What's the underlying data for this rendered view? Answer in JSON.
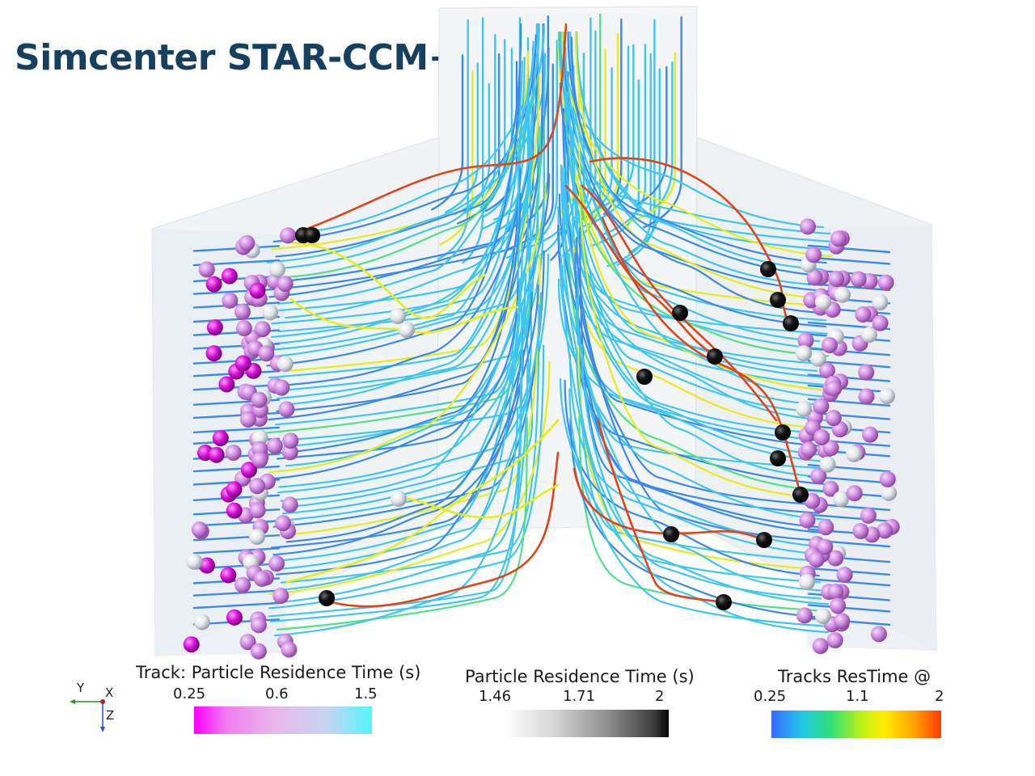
{
  "app_title": "Simcenter STAR-CCM+",
  "legends": {
    "track": {
      "title": "Track: Particle Residence Time (s)",
      "ticks": [
        "0.25",
        "0.6",
        "1.5"
      ],
      "gradient": [
        "#ff00ff",
        "#e9b7ea",
        "#52f5ff"
      ]
    },
    "particle": {
      "title": "Particle Residence Time (s)",
      "ticks": [
        "1.46",
        "1.71",
        "2"
      ],
      "gradient": [
        "#ffffff",
        "#8a8a8a",
        "#000000"
      ]
    },
    "tracks_restime": {
      "title": "Tracks ResTime @",
      "ticks": [
        "0.25",
        "1.1",
        "2"
      ],
      "gradient": [
        "#3a67ff",
        "#2fe07a",
        "#ffee00",
        "#ff3a00"
      ]
    }
  },
  "axis_triad": {
    "y": "Y",
    "x": "X",
    "z": "Z"
  },
  "colors": {
    "title": "#16405e",
    "streamline_main": "#3fc6f0",
    "streamline_blue": "#3b8ae6",
    "streamline_yellow": "#e8ec1a",
    "streamline_red": "#e0451a",
    "particle_magenta": "#cc10cc",
    "particle_pink": "#d08be0",
    "particle_black": "#111111",
    "particle_white": "#e6e6e6"
  }
}
